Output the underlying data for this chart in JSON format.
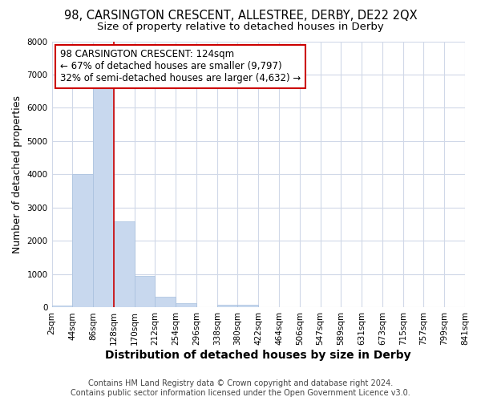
{
  "title": "98, CARSINGTON CRESCENT, ALLESTREE, DERBY, DE22 2QX",
  "subtitle": "Size of property relative to detached houses in Derby",
  "xlabel": "Distribution of detached houses by size in Derby",
  "ylabel": "Number of detached properties",
  "bin_labels": [
    "2sqm",
    "44sqm",
    "86sqm",
    "128sqm",
    "170sqm",
    "212sqm",
    "254sqm",
    "296sqm",
    "338sqm",
    "380sqm",
    "422sqm",
    "464sqm",
    "506sqm",
    "547sqm",
    "589sqm",
    "631sqm",
    "673sqm",
    "715sqm",
    "757sqm",
    "799sqm",
    "841sqm"
  ],
  "bar_heights": [
    70,
    4000,
    6600,
    2600,
    950,
    330,
    130,
    0,
    80,
    80,
    0,
    0,
    0,
    0,
    0,
    0,
    0,
    0,
    0,
    0
  ],
  "bar_color": "#c8d8ee",
  "bar_edge_color": "#a8c0de",
  "property_line_x": 3.0,
  "property_line_color": "#cc0000",
  "annotation_text": "98 CARSINGTON CRESCENT: 124sqm\n← 67% of detached houses are smaller (9,797)\n32% of semi-detached houses are larger (4,632) →",
  "annotation_box_color": "#ffffff",
  "annotation_box_edge": "#cc0000",
  "ylim": [
    0,
    8000
  ],
  "yticks": [
    0,
    1000,
    2000,
    3000,
    4000,
    5000,
    6000,
    7000,
    8000
  ],
  "footer_text": "Contains HM Land Registry data © Crown copyright and database right 2024.\nContains public sector information licensed under the Open Government Licence v3.0.",
  "bg_color": "#ffffff",
  "plot_bg_color": "#ffffff",
  "grid_color": "#d0d8e8",
  "title_fontsize": 10.5,
  "subtitle_fontsize": 9.5,
  "axis_label_fontsize": 9,
  "tick_fontsize": 7.5,
  "annotation_fontsize": 8.5,
  "footer_fontsize": 7
}
